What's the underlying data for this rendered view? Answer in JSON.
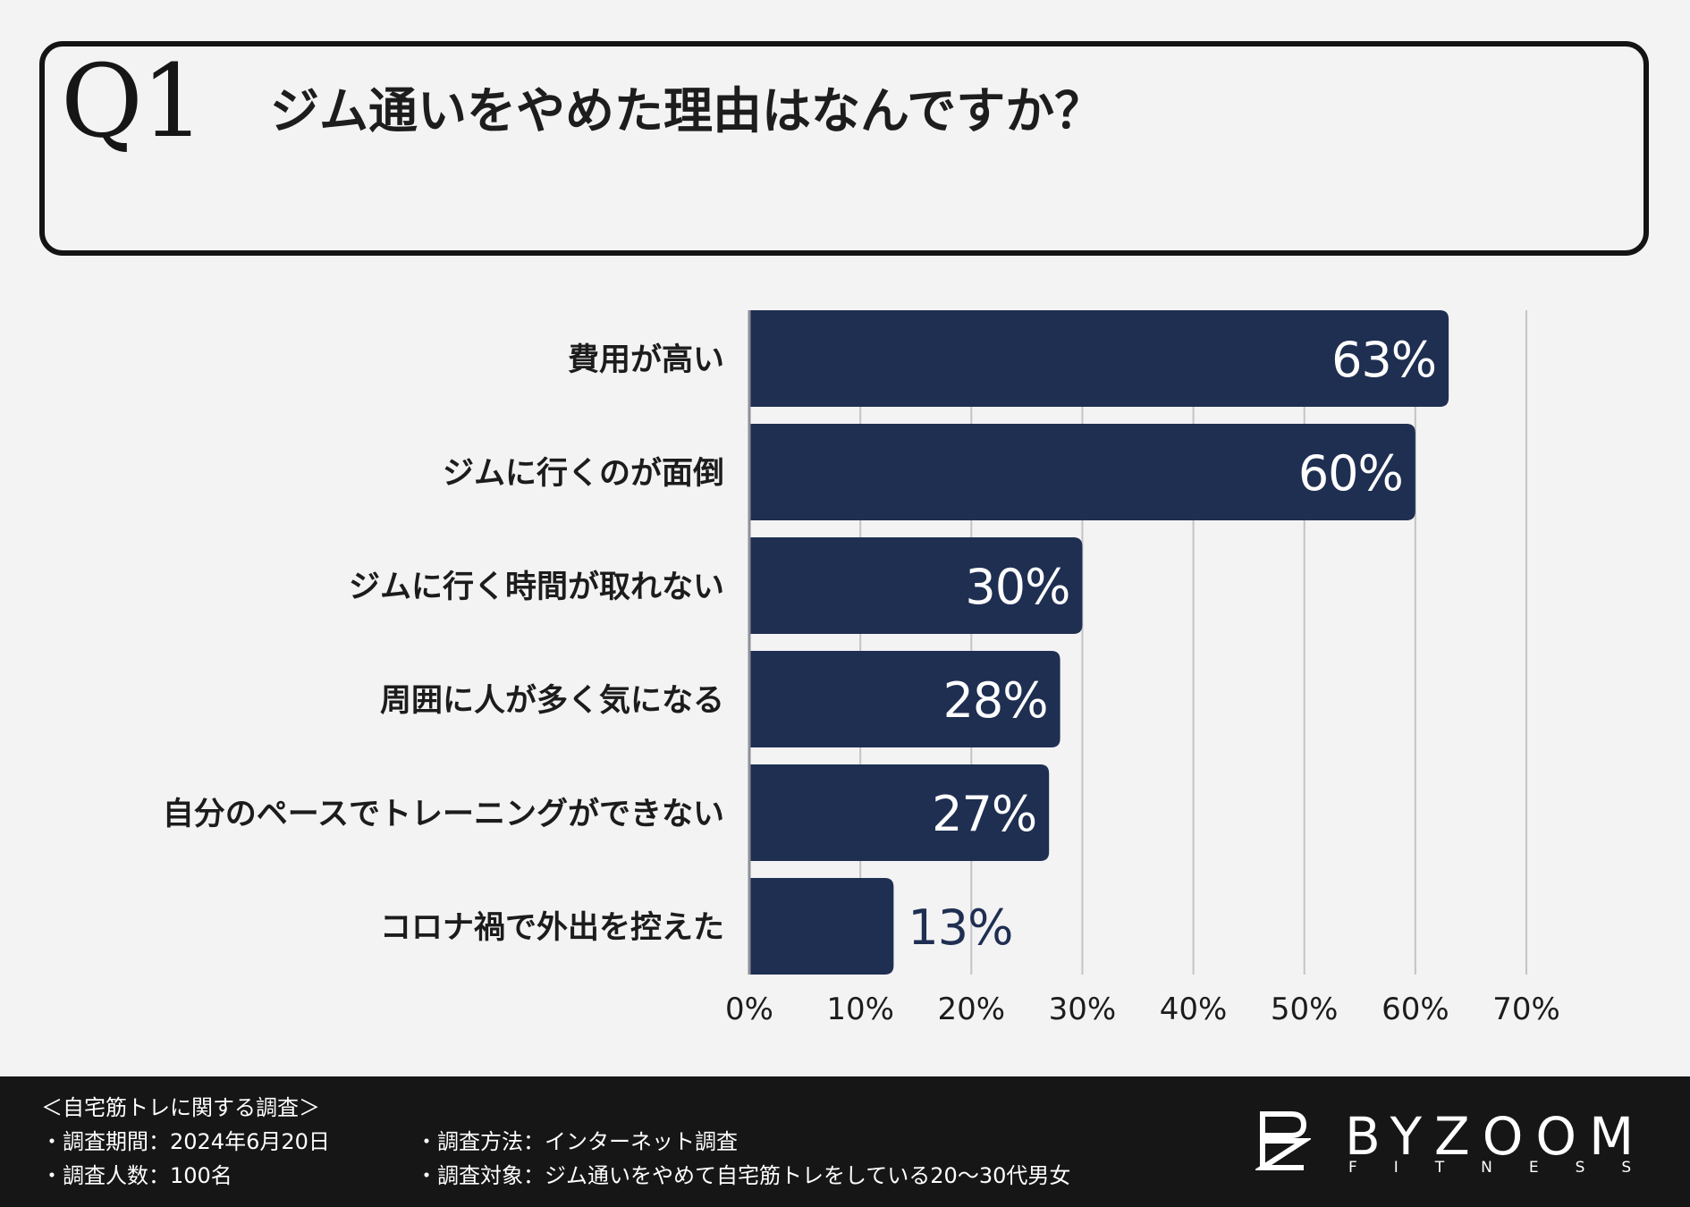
{
  "question": {
    "number": "Q1",
    "text": "ジム通いをやめた理由はなんですか？"
  },
  "chart_data": {
    "type": "bar",
    "orientation": "horizontal",
    "categories": [
      "費用が高い",
      "ジムに行くのが面倒",
      "ジムに行く時間が取れない",
      "周囲に人が多く気になる",
      "自分のペースでトレーニングができない",
      "コロナ禍で外出を控えた"
    ],
    "values": [
      63,
      60,
      30,
      28,
      27,
      13
    ],
    "value_labels": [
      "63%",
      "60%",
      "30%",
      "28%",
      "27%",
      "13%"
    ],
    "xlim": [
      0,
      70
    ],
    "xticks": [
      "0%",
      "10%",
      "20%",
      "30%",
      "40%",
      "50%",
      "60%",
      "70%"
    ],
    "grid": true,
    "title": "",
    "xlabel": "",
    "ylabel": "",
    "bar_color": "#1f2f52",
    "label_color_inside": "#ffffff",
    "label_color_outside": "#1f2f52"
  },
  "footer": {
    "survey_title": "＜自宅筋トレに関する調査＞",
    "period": "・調査期間：2024年6月20日",
    "respondents": "・調査人数：100名",
    "method": "・調査方法：インターネット調査",
    "target": "・調査対象：ジム通いをやめて自宅筋トレをしている20〜30代男女"
  },
  "logo": {
    "brand": "BYZOOM",
    "sub": "FITNESS"
  }
}
